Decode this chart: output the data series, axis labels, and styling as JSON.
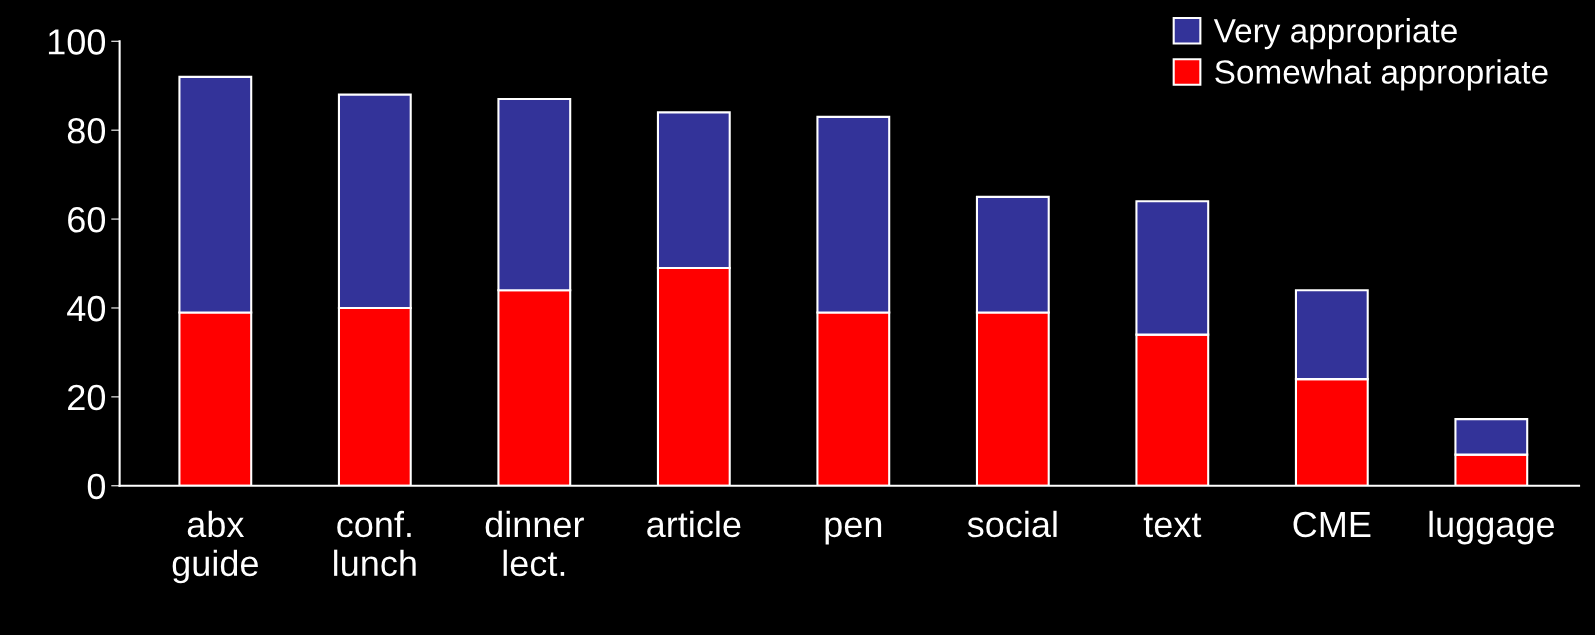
{
  "chart_data": {
    "type": "bar",
    "stacked": true,
    "categories": [
      "abx\nguide",
      "conf.\nlunch",
      "dinner\nlect.",
      "article",
      "pen",
      "social",
      "text",
      "CME",
      "luggage"
    ],
    "series": [
      {
        "name": "Somewhat appropriate",
        "color": "#ff0000",
        "values": [
          39,
          40,
          44,
          49,
          39,
          39,
          34,
          24,
          7
        ]
      },
      {
        "name": "Very appropriate",
        "color": "#333399",
        "values": [
          53,
          48,
          43,
          35,
          44,
          26,
          30,
          20,
          8
        ]
      }
    ],
    "ylim": [
      0,
      100
    ],
    "yticks": [
      0,
      20,
      40,
      60,
      80,
      100
    ],
    "grid": false,
    "legend": "top right"
  }
}
